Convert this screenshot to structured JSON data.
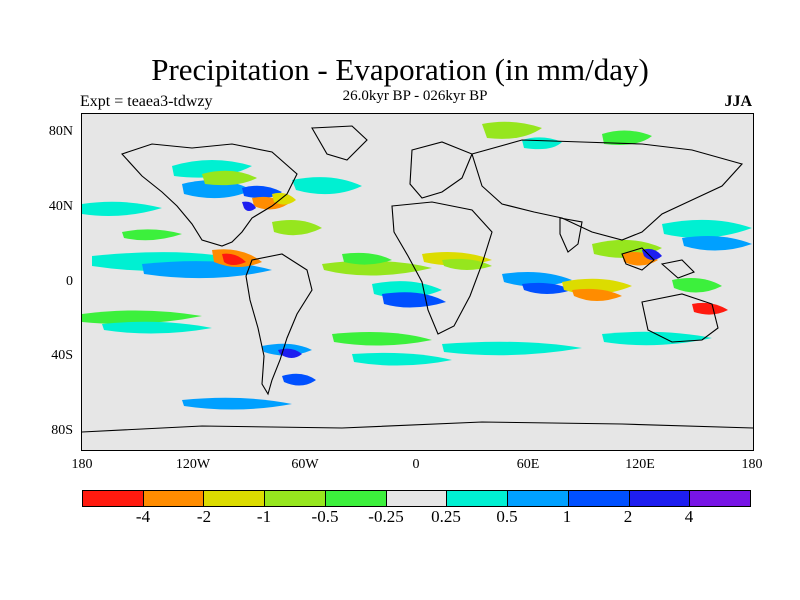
{
  "title": "Precipitation - Evaporation (in mm/day)",
  "subtitle": "26.0kyr BP - 026kyr BP",
  "experiment": "Expt = teaea3-tdwzy",
  "season": "JJA",
  "axes": {
    "y_ticks": [
      "80N",
      "40N",
      "0",
      "40S",
      "80S"
    ],
    "x_ticks": [
      "180",
      "120W",
      "60W",
      "0",
      "60E",
      "120E",
      "180"
    ]
  },
  "legend": {
    "colors": [
      "#ff1a0f",
      "#ff8c00",
      "#dcdc00",
      "#96e61e",
      "#3cf03c",
      "#e6e6e6",
      "#00f0d2",
      "#00a0ff",
      "#0050ff",
      "#1e1ef0",
      "#7814e6"
    ],
    "labels": [
      "-4",
      "-2",
      "-1",
      "-0.5",
      "-0.25",
      "0.25",
      "0.5",
      "1",
      "2",
      "4"
    ]
  },
  "colors": {
    "background": "#ffffff",
    "no_change": "#e6e6e6",
    "coastline": "#000000"
  }
}
